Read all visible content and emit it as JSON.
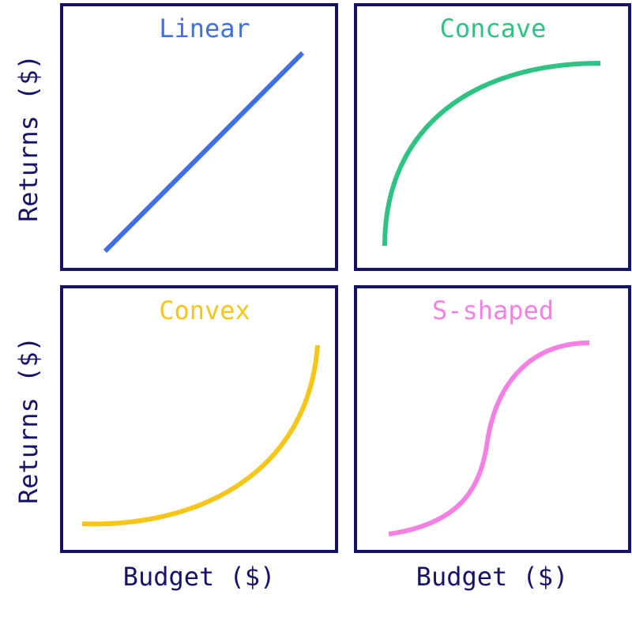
{
  "panels": [
    {
      "title": "Linear"
    },
    {
      "title": "Concave"
    },
    {
      "title": "Convex"
    },
    {
      "title": "S-shaped"
    }
  ],
  "axes": {
    "y_labels": [
      "Returns ($)",
      "Returns ($)"
    ],
    "x_labels": [
      "Budget ($)",
      "Budget ($)"
    ]
  }
}
